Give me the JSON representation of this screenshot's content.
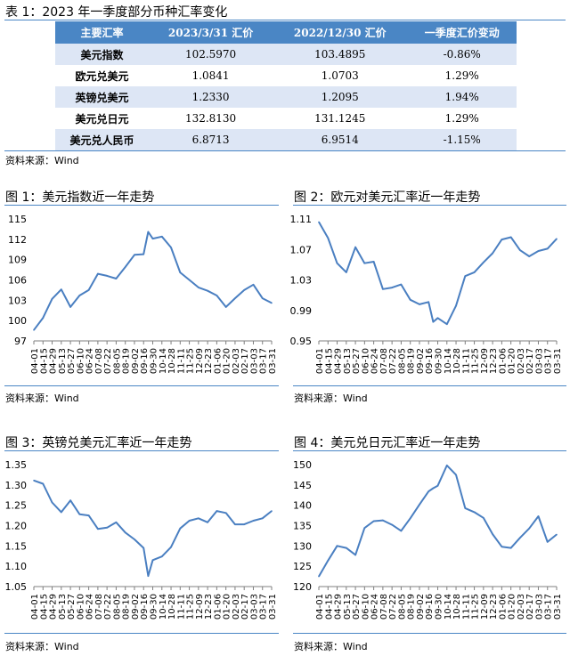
{
  "table": {
    "title": "表 1：2023 年一季度部分币种汇率变化",
    "headers": [
      "主要汇率",
      "2023/3/31 汇价",
      "2022/12/30 汇价",
      "一季度汇价变动"
    ],
    "rows": [
      [
        "美元指数",
        "102.5970",
        "103.4895",
        "-0.86%"
      ],
      [
        "欧元兑美元",
        "1.0841",
        "1.0703",
        "1.29%"
      ],
      [
        "英镑兑美元",
        "1.2330",
        "1.2095",
        "1.94%"
      ],
      [
        "美元兑日元",
        "132.8130",
        "131.1245",
        "1.29%"
      ],
      [
        "美元兑人民币",
        "6.8713",
        "6.9514",
        "-1.15%"
      ]
    ],
    "source": "资料来源：Wind"
  },
  "colors": {
    "line": "#4a7fc1",
    "header": "#4a86c5",
    "row_alt": "#dde6f5"
  },
  "chart_data": [
    {
      "type": "line",
      "title": "图 1：美元指数近一年走势",
      "source": "资料来源：Wind",
      "ylim": [
        97,
        115
      ],
      "yticks": [
        "97",
        "100",
        "103",
        "106",
        "109",
        "112",
        "115"
      ],
      "xticks": [
        "04-01",
        "04-15",
        "04-29",
        "05-13",
        "05-27",
        "06-10",
        "06-24",
        "07-08",
        "07-22",
        "08-05",
        "08-19",
        "09-02",
        "09-16",
        "09-30",
        "10-14",
        "10-28",
        "11-11",
        "11-25",
        "12-09",
        "12-23",
        "01-06",
        "01-20",
        "02-03",
        "02-17",
        "03-03",
        "03-17",
        "03-31"
      ],
      "x": [
        "04-01",
        "04-15",
        "04-29",
        "05-13",
        "05-27",
        "06-10",
        "06-24",
        "07-08",
        "07-22",
        "08-05",
        "08-19",
        "09-02",
        "09-16",
        "09-23",
        "09-30",
        "10-14",
        "10-28",
        "11-11",
        "11-25",
        "12-09",
        "12-23",
        "01-06",
        "01-20",
        "02-03",
        "02-17",
        "03-03",
        "03-17",
        "03-31"
      ],
      "values": [
        98.6,
        100.4,
        103.2,
        104.6,
        102.0,
        103.7,
        104.5,
        106.9,
        106.6,
        106.2,
        107.9,
        109.7,
        109.8,
        113.1,
        112.1,
        112.4,
        110.8,
        107.1,
        106.0,
        104.9,
        104.4,
        103.7,
        102.0,
        103.3,
        104.5,
        105.3,
        103.3,
        102.6
      ]
    },
    {
      "type": "line",
      "title": "图 2：欧元对美元汇率近一年走势",
      "source": "资料来源：Wind",
      "ylim": [
        0.95,
        1.11
      ],
      "yticks": [
        "0.95",
        "0.99",
        "1.03",
        "1.07",
        "1.11"
      ],
      "xticks": [
        "04-01",
        "04-15",
        "04-29",
        "05-13",
        "05-27",
        "06-10",
        "06-24",
        "07-08",
        "07-22",
        "08-05",
        "08-19",
        "09-02",
        "09-16",
        "09-30",
        "10-14",
        "10-28",
        "11-11",
        "11-25",
        "12-09",
        "12-23",
        "01-06",
        "01-20",
        "02-03",
        "02-17",
        "03-03",
        "03-17",
        "03-31"
      ],
      "x": [
        "04-01",
        "04-15",
        "04-29",
        "05-13",
        "05-27",
        "06-10",
        "06-24",
        "07-08",
        "07-22",
        "08-05",
        "08-19",
        "09-02",
        "09-16",
        "09-23",
        "09-30",
        "10-14",
        "10-28",
        "11-11",
        "11-25",
        "12-09",
        "12-23",
        "01-06",
        "01-20",
        "02-03",
        "02-17",
        "03-03",
        "03-17",
        "03-31"
      ],
      "values": [
        1.106,
        1.085,
        1.052,
        1.04,
        1.073,
        1.052,
        1.054,
        1.018,
        1.02,
        1.024,
        1.004,
        0.998,
        1.001,
        0.975,
        0.98,
        0.972,
        0.996,
        1.035,
        1.04,
        1.053,
        1.065,
        1.083,
        1.086,
        1.069,
        1.061,
        1.068,
        1.071,
        1.084
      ]
    },
    {
      "type": "line",
      "title": "图 3：英镑兑美元汇率近一年走势",
      "source": "资料来源：Wind",
      "ylim": [
        1.05,
        1.35
      ],
      "yticks": [
        "1.05",
        "1.10",
        "1.15",
        "1.20",
        "1.25",
        "1.30",
        "1.35"
      ],
      "xticks": [
        "04-01",
        "04-15",
        "04-29",
        "05-13",
        "05-27",
        "06-10",
        "06-24",
        "07-08",
        "07-22",
        "08-05",
        "08-19",
        "09-02",
        "09-16",
        "09-30",
        "10-14",
        "10-28",
        "11-11",
        "11-25",
        "12-09",
        "12-23",
        "01-06",
        "01-20",
        "02-03",
        "02-17",
        "03-03",
        "03-17",
        "03-31"
      ],
      "x": [
        "04-01",
        "04-15",
        "04-29",
        "05-13",
        "05-27",
        "06-10",
        "06-24",
        "07-08",
        "07-22",
        "08-05",
        "08-19",
        "09-02",
        "09-16",
        "09-23",
        "09-30",
        "10-14",
        "10-28",
        "11-11",
        "11-25",
        "12-09",
        "12-23",
        "01-06",
        "01-20",
        "02-03",
        "02-17",
        "03-03",
        "03-17",
        "03-31"
      ],
      "values": [
        1.311,
        1.303,
        1.257,
        1.233,
        1.262,
        1.228,
        1.225,
        1.192,
        1.195,
        1.208,
        1.183,
        1.166,
        1.145,
        1.076,
        1.115,
        1.124,
        1.147,
        1.193,
        1.212,
        1.218,
        1.208,
        1.236,
        1.231,
        1.203,
        1.203,
        1.212,
        1.218,
        1.236
      ]
    },
    {
      "type": "line",
      "title": "图 4：美元兑日元汇率近一年走势",
      "source": "资料来源：Wind",
      "ylim": [
        120,
        150
      ],
      "yticks": [
        "120",
        "125",
        "130",
        "135",
        "140",
        "145",
        "150"
      ],
      "xticks": [
        "04-01",
        "04-15",
        "04-29",
        "05-13",
        "05-27",
        "06-10",
        "06-24",
        "07-08",
        "07-22",
        "08-05",
        "08-19",
        "09-02",
        "09-16",
        "09-30",
        "10-14",
        "10-28",
        "11-11",
        "11-25",
        "12-09",
        "12-23",
        "01-06",
        "01-20",
        "02-03",
        "02-17",
        "03-03",
        "03-17",
        "03-31"
      ],
      "x": [
        "04-01",
        "04-15",
        "04-29",
        "05-13",
        "05-27",
        "06-10",
        "06-24",
        "07-08",
        "07-22",
        "08-05",
        "08-19",
        "09-02",
        "09-16",
        "09-23",
        "09-30",
        "10-14",
        "10-28",
        "11-11",
        "11-25",
        "12-09",
        "12-23",
        "01-06",
        "01-20",
        "02-03",
        "02-17",
        "03-03",
        "03-17",
        "03-31"
      ],
      "values": [
        122.5,
        126.4,
        130.0,
        129.5,
        127.8,
        134.4,
        136.1,
        136.3,
        135.2,
        133.7,
        136.8,
        140.2,
        143.4,
        144.2,
        144.8,
        149.8,
        147.5,
        139.3,
        138.3,
        136.9,
        132.9,
        129.8,
        129.5,
        132.0,
        134.3,
        137.3,
        131.0,
        132.8
      ]
    }
  ]
}
